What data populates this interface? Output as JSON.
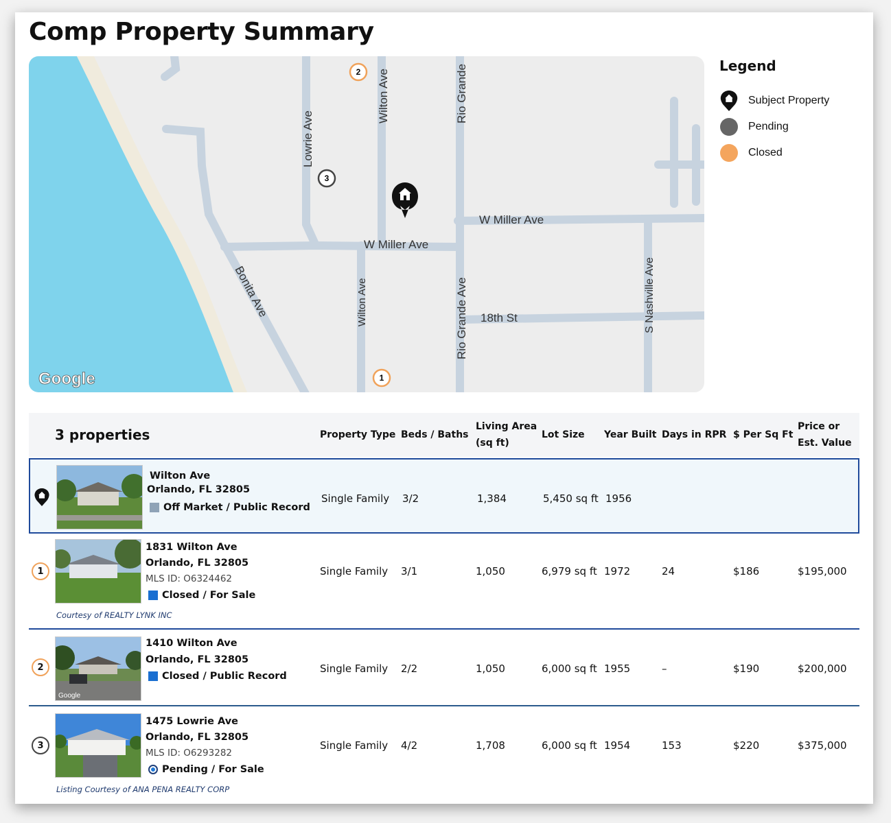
{
  "title": "Comp Property Summary",
  "map": {
    "streets": {
      "lowrie": "Lowrie Ave",
      "wilton_top": "Wilton Ave",
      "rio_top": "Rio Grande",
      "w_miller_left": "W Miller Ave",
      "w_miller_right": "W Miller Ave",
      "bonita": "Bonita Ave",
      "wilton_bottom": "Wilton Ave",
      "rio_bottom": "Rio Grande Ave",
      "eighteenth": "18th St",
      "nashville": "S Nashville Ave"
    },
    "markers": {
      "m1": "1",
      "m2": "2",
      "m3": "3"
    },
    "google_label": "Google",
    "colors": {
      "water": "#7fd3ec",
      "sand": "#f0ebdd",
      "land": "#ededed",
      "road": "#c7d3df",
      "closed": "#f0a25a",
      "pending": "#666666"
    }
  },
  "legend": {
    "title": "Legend",
    "items": [
      {
        "label": "Subject Property",
        "icon": "home-pin-icon"
      },
      {
        "label": "Pending",
        "color": "#666666"
      },
      {
        "label": "Closed",
        "color": "#f4a55d"
      }
    ]
  },
  "table": {
    "count_label": "3 properties",
    "headers": {
      "type": "Property Type",
      "beds": "Beds / Baths",
      "area1": "Living Area",
      "area2": "(sq ft)",
      "lot": "Lot Size",
      "year": "Year Built",
      "days": "Days in RPR",
      "psf": "$ Per Sq Ft",
      "price1": "Price or",
      "price2": "Est. Value"
    },
    "subject": {
      "addr1": "Wilton Ave",
      "addr2": "Orlando, FL 32805",
      "status": "Off Market / Public Record",
      "status_color": "#8fa3b7",
      "type": "Single Family",
      "beds": "3/2",
      "area": "1,384",
      "lot": "5,450 sq ft",
      "year": "1956"
    },
    "comps": [
      {
        "num": "1",
        "addr1": "1831 Wilton Ave",
        "addr2": "Orlando, FL 32805",
        "mls": "MLS ID: O6324462",
        "status": "Closed / For Sale",
        "status_color": "#1a6fd1",
        "courtesy": "Courtesy of REALTY LYNK INC",
        "type": "Single Family",
        "beds": "3/1",
        "area": "1,050",
        "lot": "6,979 sq ft",
        "year": "1972",
        "days": "24",
        "psf": "$186",
        "price": "$195,000"
      },
      {
        "num": "2",
        "addr1": "1410 Wilton Ave",
        "addr2": "Orlando, FL 32805",
        "status": "Closed / Public Record",
        "status_color": "#1a6fd1",
        "thumb_label": "Google",
        "type": "Single Family",
        "beds": "2/2",
        "area": "1,050",
        "lot": "6,000 sq ft",
        "year": "1955",
        "days": "–",
        "psf": "$190",
        "price": "$200,000"
      },
      {
        "num": "3",
        "addr1": "1475 Lowrie Ave",
        "addr2": "Orlando, FL 32805",
        "mls": "MLS ID: O6293282",
        "status": "Pending / For Sale",
        "courtesy": "Listing Courtesy of ANA PENA REALTY CORP",
        "type": "Single Family",
        "beds": "4/2",
        "area": "1,708",
        "lot": "6,000 sq ft",
        "year": "1954",
        "days": "153",
        "psf": "$220",
        "price": "$375,000"
      }
    ]
  }
}
